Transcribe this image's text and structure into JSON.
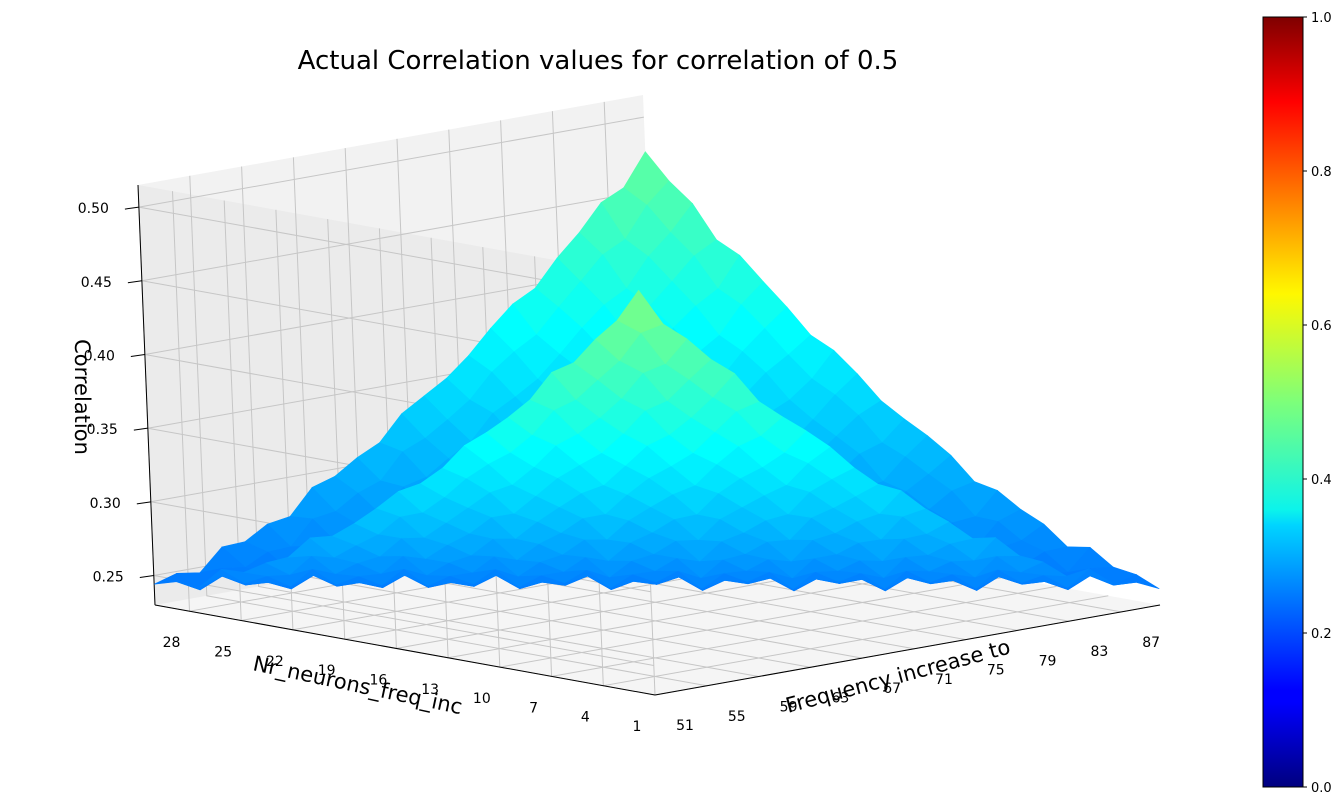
{
  "chart_data": {
    "type": "surface3d",
    "title": "Actual Correlation values for correlation of 0.5",
    "xlabel": "Frequency increase to",
    "ylabel": "Nr_neurons_freq_inc",
    "zlabel": "Correlation",
    "x_ticks": [
      "51",
      "55",
      "59",
      "63",
      "67",
      "71",
      "75",
      "79",
      "83",
      "87"
    ],
    "y_ticks": [
      "28",
      "25",
      "22",
      "19",
      "16",
      "13",
      "10",
      "7",
      "4",
      "1"
    ],
    "z_ticks": [
      "0.25",
      "0.30",
      "0.35",
      "0.40",
      "0.45",
      "0.50"
    ],
    "colorbar_ticks": [
      "0.0",
      "0.2",
      "0.4",
      "0.6",
      "0.8",
      "1.0"
    ],
    "xlim": [
      51,
      90
    ],
    "ylim": [
      1,
      30
    ],
    "zlim": [
      0.23,
      0.515
    ],
    "colormap": "jet",
    "grid": true,
    "surface": {
      "x_range": [
        51,
        90
      ],
      "y_range": [
        1,
        30
      ],
      "z_min": 0.245,
      "z_corner_high_freq_few_neurons": 0.475,
      "z_corner_low_freq_many_neurons": 0.5
    }
  }
}
